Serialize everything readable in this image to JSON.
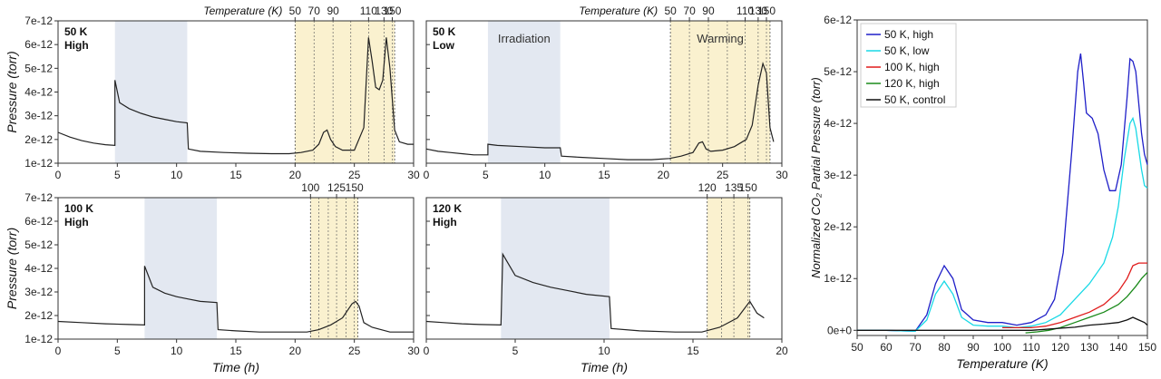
{
  "chart_data": [
    {
      "type": "line",
      "panel_label": [
        "50 K",
        "High"
      ],
      "xlabel": "",
      "ylabel": "Pressure (torr)",
      "xlim": [
        0,
        30
      ],
      "ylim": [
        1e-12,
        7e-12
      ],
      "x_ticks": [
        0,
        5,
        10,
        15,
        20,
        25,
        30
      ],
      "y_ticks": [
        "1e-12",
        "2e-12",
        "3e-12",
        "4e-12",
        "5e-12",
        "6e-12",
        "7e-12"
      ],
      "irradiation_window": [
        4.8,
        10.9
      ],
      "warming_window": [
        20,
        28.4
      ],
      "top_axis_label": "Temperature (K)",
      "top_axis_ticks": [
        "50",
        "70",
        "90",
        "110",
        "130",
        "150"
      ],
      "region_labels": [],
      "temp_marks": [
        20,
        21.6,
        23.2,
        24.7,
        26.2,
        27.5,
        28.2
      ],
      "series": [
        {
          "x": [
            0,
            1,
            2,
            3,
            4,
            4.8,
            4.8,
            5.2,
            6,
            7,
            8,
            9,
            10,
            10.9,
            11,
            12,
            14,
            16,
            18,
            19.5,
            20.5,
            21.5,
            22,
            22.4,
            22.7,
            23,
            23.4,
            24,
            25,
            25.8,
            26.2,
            26.5,
            26.8,
            27.1,
            27.4,
            27.7,
            28.0,
            28.4,
            28.8,
            29.5,
            30
          ],
          "y": [
            2.3e-12,
            2.1e-12,
            1.95e-12,
            1.85e-12,
            1.78e-12,
            1.75e-12,
            4.5e-12,
            3.55e-12,
            3.3e-12,
            3.1e-12,
            2.95e-12,
            2.85e-12,
            2.75e-12,
            2.7e-12,
            1.6e-12,
            1.5e-12,
            1.45e-12,
            1.42e-12,
            1.4e-12,
            1.4e-12,
            1.45e-12,
            1.55e-12,
            1.8e-12,
            2.3e-12,
            2.4e-12,
            2e-12,
            1.7e-12,
            1.55e-12,
            1.55e-12,
            2.5e-12,
            6.3e-12,
            5.3e-12,
            4.2e-12,
            4.1e-12,
            4.5e-12,
            6.3e-12,
            5e-12,
            2.4e-12,
            1.9e-12,
            1.8e-12,
            1.8e-12
          ]
        }
      ]
    },
    {
      "type": "line",
      "panel_label": [
        "50 K",
        "Low"
      ],
      "xlabel": "",
      "ylabel": "",
      "xlim": [
        0,
        30
      ],
      "ylim": [
        1e-12,
        7e-12
      ],
      "x_ticks": [
        0,
        5,
        10,
        15,
        20,
        25,
        30
      ],
      "y_ticks": [],
      "irradiation_window": [
        5.2,
        11.3
      ],
      "warming_window": [
        20.6,
        29
      ],
      "top_axis_label": "Temperature (K)",
      "top_axis_ticks": [
        "50",
        "70",
        "90",
        "110",
        "130",
        "150"
      ],
      "region_labels": [
        "Irradiation",
        "Warming"
      ],
      "temp_marks": [
        20.6,
        22.2,
        23.8,
        25.4,
        26.9,
        28.0,
        28.7
      ],
      "series": [
        {
          "x": [
            0,
            1,
            2,
            3,
            4,
            5.2,
            5.2,
            6,
            8,
            10,
            11.3,
            11.4,
            13,
            15,
            17,
            19,
            20.5,
            21.5,
            22.5,
            23,
            23.3,
            23.6,
            24,
            25,
            26,
            27,
            27.5,
            28.0,
            28.4,
            28.7,
            29,
            29.3
          ],
          "y": [
            1.6e-12,
            1.5e-12,
            1.45e-12,
            1.4e-12,
            1.35e-12,
            1.35e-12,
            1.8e-12,
            1.75e-12,
            1.7e-12,
            1.65e-12,
            1.65e-12,
            1.3e-12,
            1.25e-12,
            1.2e-12,
            1.15e-12,
            1.15e-12,
            1.2e-12,
            1.3e-12,
            1.45e-12,
            1.85e-12,
            1.9e-12,
            1.6e-12,
            1.5e-12,
            1.55e-12,
            1.7e-12,
            2e-12,
            2.6e-12,
            4.3e-12,
            5.2e-12,
            4.8e-12,
            2.5e-12,
            1.9e-12
          ]
        }
      ]
    },
    {
      "type": "line",
      "panel_label": [
        "100 K",
        "High"
      ],
      "xlabel": "Time (h)",
      "ylabel": "Pressure (torr)",
      "xlim": [
        0,
        30
      ],
      "ylim": [
        1e-12,
        7e-12
      ],
      "x_ticks": [
        0,
        5,
        10,
        15,
        20,
        25,
        30
      ],
      "y_ticks": [
        "1e-12",
        "2e-12",
        "3e-12",
        "4e-12",
        "5e-12",
        "6e-12",
        "7e-12"
      ],
      "irradiation_window": [
        7.3,
        13.4
      ],
      "warming_window": [
        21.3,
        25.3
      ],
      "top_axis_label": "",
      "top_axis_ticks": [
        "100",
        "125",
        "150"
      ],
      "region_labels": [],
      "temp_marks": [
        21.3,
        22.0,
        22.8,
        23.5,
        24.3,
        25.0
      ],
      "series": [
        {
          "x": [
            0,
            2,
            4,
            6,
            7.3,
            7.3,
            8,
            9,
            10,
            11,
            12,
            13.4,
            13.5,
            15,
            17,
            19,
            21,
            22,
            23,
            24,
            24.8,
            25.1,
            25.4,
            25.8,
            26.5,
            28,
            30
          ],
          "y": [
            1.75e-12,
            1.7e-12,
            1.65e-12,
            1.62e-12,
            1.6e-12,
            4.1e-12,
            3.2e-12,
            2.95e-12,
            2.8e-12,
            2.7e-12,
            2.6e-12,
            2.55e-12,
            1.4e-12,
            1.35e-12,
            1.3e-12,
            1.3e-12,
            1.3e-12,
            1.4e-12,
            1.6e-12,
            1.9e-12,
            2.5e-12,
            2.6e-12,
            2.4e-12,
            1.7e-12,
            1.5e-12,
            1.3e-12,
            1.3e-12
          ]
        }
      ]
    },
    {
      "type": "line",
      "panel_label": [
        "120 K",
        "High"
      ],
      "xlabel": "Time (h)",
      "ylabel": "",
      "xlim": [
        0,
        20
      ],
      "ylim": [
        1e-12,
        7e-12
      ],
      "x_ticks": [
        0,
        5,
        10,
        15,
        20
      ],
      "y_ticks": [],
      "irradiation_window": [
        4.2,
        10.3
      ],
      "warming_window": [
        15.8,
        18.2
      ],
      "top_axis_label": "",
      "top_axis_ticks": [
        "120",
        "135",
        "150"
      ],
      "region_labels": [],
      "temp_marks": [
        15.8,
        16.6,
        17.3,
        18.1
      ],
      "series": [
        {
          "x": [
            0,
            1,
            2,
            3,
            4.2,
            4.3,
            5,
            6,
            7,
            8,
            9,
            10.3,
            10.4,
            12,
            14,
            15.5,
            16.5,
            17.5,
            18.2,
            18.6,
            19
          ],
          "y": [
            1.75e-12,
            1.7e-12,
            1.65e-12,
            1.62e-12,
            1.6e-12,
            4.6e-12,
            3.7e-12,
            3.4e-12,
            3.2e-12,
            3.05e-12,
            2.9e-12,
            2.8e-12,
            1.45e-12,
            1.35e-12,
            1.3e-12,
            1.3e-12,
            1.5e-12,
            1.9e-12,
            2.6e-12,
            2.1e-12,
            1.9e-12
          ]
        }
      ]
    },
    {
      "type": "line",
      "xlabel": "Temperature (K)",
      "ylabel": "Normalized CO₂ Partial Pressure (torr)",
      "xlim": [
        50,
        150
      ],
      "ylim": [
        -1e-13,
        6e-12
      ],
      "x_ticks": [
        50,
        60,
        70,
        80,
        90,
        100,
        110,
        120,
        130,
        140,
        150
      ],
      "y_ticks": [
        "0e+0",
        "1e-12",
        "2e-12",
        "3e-12",
        "4e-12",
        "5e-12",
        "6e-12"
      ],
      "legend_position": "top-left",
      "series": [
        {
          "name": "50 K, high",
          "color": "#1f1fc8",
          "x": [
            50,
            60,
            70,
            74,
            77,
            80,
            83,
            86,
            90,
            95,
            100,
            105,
            110,
            115,
            118,
            121,
            124,
            126,
            127,
            128,
            129,
            131,
            133,
            135,
            137,
            139,
            141,
            143,
            144,
            145,
            146,
            147,
            148,
            149,
            150
          ],
          "y": [
            0,
            0,
            -2e-14,
            3e-13,
            9e-13,
            1.25e-12,
            1e-12,
            4e-13,
            2e-13,
            1.5e-13,
            1.5e-13,
            1e-13,
            1.5e-13,
            3e-13,
            6e-13,
            1.5e-12,
            3.5e-12,
            5e-12,
            5.35e-12,
            4.8e-12,
            4.2e-12,
            4.1e-12,
            3.8e-12,
            3.1e-12,
            2.7e-12,
            2.7e-12,
            3.2e-12,
            4.5e-12,
            5.25e-12,
            5.2e-12,
            5e-12,
            4.4e-12,
            3.8e-12,
            3.4e-12,
            3.2e-12
          ]
        },
        {
          "name": "50 K, low",
          "color": "#19d9e6",
          "x": [
            50,
            60,
            70,
            74,
            77,
            80,
            83,
            86,
            90,
            95,
            100,
            105,
            110,
            115,
            120,
            125,
            130,
            135,
            138,
            140,
            142,
            144,
            145,
            146,
            147,
            148,
            149,
            150
          ],
          "y": [
            0,
            0,
            -2e-14,
            2e-13,
            7e-13,
            9.5e-13,
            7e-13,
            2.5e-13,
            1e-13,
            8e-14,
            8e-14,
            5e-14,
            8e-14,
            1.5e-13,
            3e-13,
            6e-13,
            9e-13,
            1.3e-12,
            1.8e-12,
            2.4e-12,
            3.3e-12,
            4e-12,
            4.1e-12,
            3.9e-12,
            3.5e-12,
            3.1e-12,
            2.8e-12,
            2.75e-12
          ]
        },
        {
          "name": "100 K, high",
          "color": "#e01b1b",
          "x": [
            100,
            105,
            110,
            115,
            120,
            125,
            130,
            135,
            140,
            143,
            145,
            147,
            148,
            150
          ],
          "y": [
            5e-14,
            5e-14,
            5e-14,
            8e-14,
            1.5e-13,
            2.5e-13,
            3.5e-13,
            5e-13,
            7.5e-13,
            1e-12,
            1.25e-12,
            1.3e-12,
            1.3e-12,
            1.3e-12
          ]
        },
        {
          "name": "120 K, high",
          "color": "#1a8a1a",
          "x": [
            108,
            112,
            116,
            120,
            125,
            130,
            135,
            140,
            143,
            146,
            148,
            150
          ],
          "y": [
            -5e-14,
            -3e-14,
            0,
            5e-14,
            1.5e-13,
            2.5e-13,
            3.5e-13,
            5e-13,
            6.5e-13,
            8.5e-13,
            1e-12,
            1.12e-12
          ]
        },
        {
          "name": "50 K, control",
          "color": "#111111",
          "x": [
            50,
            60,
            70,
            80,
            90,
            100,
            110,
            115,
            120,
            125,
            130,
            135,
            140,
            143,
            145,
            147,
            149,
            150
          ],
          "y": [
            0,
            0,
            0,
            0,
            0,
            0,
            0,
            2e-14,
            4e-14,
            6e-14,
            1e-13,
            1.2e-13,
            1.5e-13,
            2e-13,
            2.5e-13,
            2e-13,
            1.5e-13,
            1e-13
          ]
        }
      ]
    }
  ]
}
